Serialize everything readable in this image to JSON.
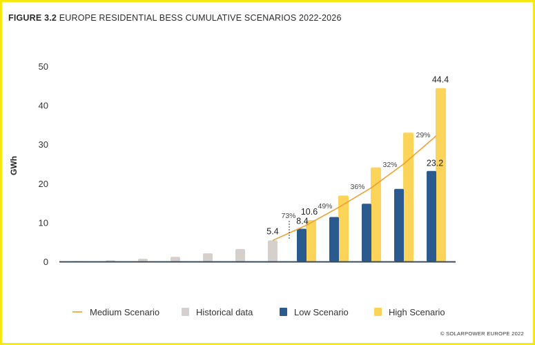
{
  "title_bold": "FIGURE 3.2",
  "title_rest": "EUROPE RESIDENTIAL BESS CUMULATIVE SCENARIOS 2022-2026",
  "copyright": "© SOLARPOWER EUROPE 2022",
  "chart_data": {
    "type": "bar",
    "title": "FIGURE 3.2 EUROPE RESIDENTIAL BESS CUMULATIVE SCENARIOS 2022-2026",
    "xlabel": "",
    "ylabel": "GWh",
    "ylim": [
      0,
      50
    ],
    "yticks": [
      0,
      10,
      20,
      30,
      40,
      50
    ],
    "grid": false,
    "legend_position": "bottom",
    "colors": {
      "historical": "#d6d0cd",
      "low": "#2b5a8e",
      "high": "#fcd45a",
      "medium": "#f0a030",
      "axis": "#3a4a5a"
    },
    "historical": {
      "name": "Historical data",
      "values": [
        0.1,
        0.3,
        0.7,
        1.2,
        2.1,
        3.2,
        5.4
      ],
      "labels": [
        "",
        "",
        "",
        "",
        "",
        "",
        "5.4"
      ]
    },
    "low": {
      "name": "Low Scenario",
      "values": [
        8.4,
        11.4,
        14.8,
        18.6,
        23.2
      ],
      "labels": [
        "8.4",
        "",
        "",
        "",
        "23.2"
      ]
    },
    "high": {
      "name": "High Scenario",
      "values": [
        10.6,
        16.9,
        24.1,
        33.0,
        44.4
      ],
      "labels": [
        "10.6",
        "",
        "",
        "",
        "44.4"
      ]
    },
    "medium": {
      "name": "Medium Scenario",
      "values": [
        5.4,
        9.3,
        13.9,
        18.9,
        25.0,
        32.2
      ],
      "growth_labels": [
        "73%",
        "49%",
        "36%",
        "32%",
        "29%"
      ]
    }
  },
  "legend": [
    {
      "key": "medium",
      "label": "Medium Scenario"
    },
    {
      "key": "historical",
      "label": "Historical data"
    },
    {
      "key": "low",
      "label": "Low Scenario"
    },
    {
      "key": "high",
      "label": "High Scenario"
    }
  ]
}
